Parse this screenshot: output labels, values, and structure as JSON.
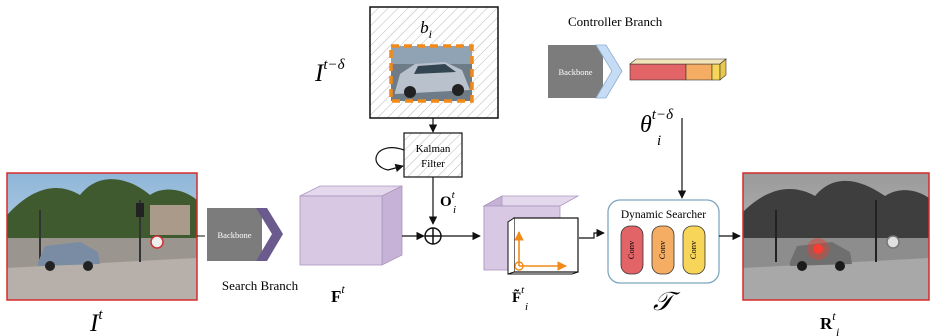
{
  "labels": {
    "b": "b",
    "b_sub": "i",
    "I": "I",
    "I_sup_prev": "t−δ",
    "I_cur": "I",
    "I_sup": "t",
    "theta": "θ",
    "theta_sub": "i",
    "theta_sup": "t−δ",
    "O": "O",
    "O_sub": "i",
    "O_sup": "t",
    "F": "F",
    "F_sup": "t",
    "Ft": "F̃",
    "Ft_sub": "i",
    "Ft_sup": "t",
    "T": "𝒯",
    "R": "R",
    "R_sub": "i",
    "R_sup": "t"
  },
  "branches": {
    "controller": "Controller Branch",
    "search": "Search Branch"
  },
  "blocks": {
    "backbone_top": "Backbone",
    "backbone_bottom": "Backbone",
    "kalman_line1": "Kalman",
    "kalman_line2": "Filter",
    "dynamic_searcher": "Dynamic Searcher",
    "conv1": "Conv",
    "conv2": "Conv",
    "conv3": "Conv"
  },
  "colors": {
    "frame_red": "#d62b2b",
    "feature_purple": "#d9c8e3",
    "backbone_gray": "#7c7c7c",
    "chevron_purple": "#6b5a8e",
    "chevron_blue": "#c6dcf4",
    "theta_red": "#e26466",
    "theta_orange": "#f4ad63",
    "theta_yellow": "#f7d558",
    "bbox_orange": "#f28a1a",
    "searcher_border": "#7fa7bf"
  }
}
